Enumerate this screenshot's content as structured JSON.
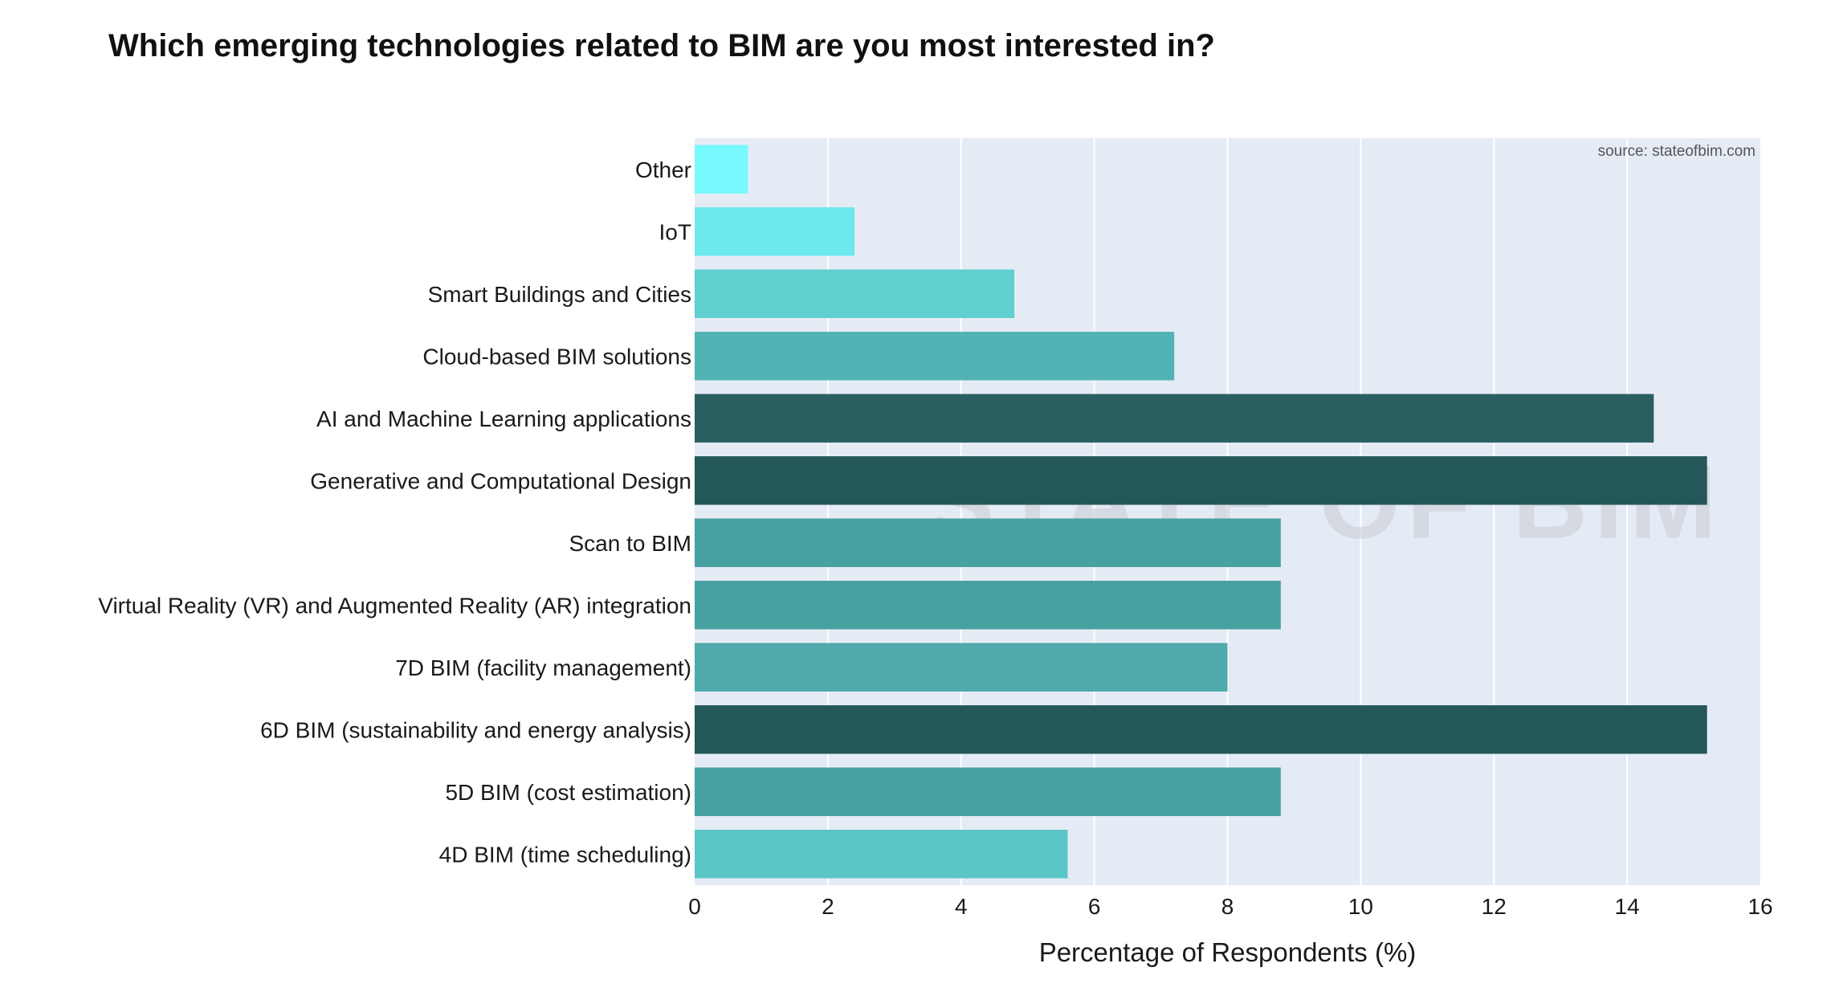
{
  "chart_data": {
    "type": "bar",
    "orientation": "horizontal",
    "title": "Which emerging technologies related to BIM are you most interested in?",
    "xlabel": "Percentage of Respondents (%)",
    "ylabel": "",
    "source": "source: stateofbim.com",
    "watermark": "STATE OF BIM",
    "xlim": [
      0,
      16
    ],
    "xticks": [
      0,
      2,
      4,
      6,
      8,
      10,
      12,
      14,
      16
    ],
    "grid": true,
    "background": "#e5ebf5",
    "categories": [
      "Other",
      "IoT",
      "Smart Buildings and Cities",
      "Cloud-based BIM solutions",
      "AI and Machine Learning applications",
      "Generative and Computational Design",
      "Scan to BIM",
      "Virtual Reality (VR) and Augmented Reality (AR) integration",
      "7D BIM (facility management)",
      "6D BIM (sustainability and energy analysis)",
      "5D BIM (cost estimation)",
      "4D BIM (time scheduling)"
    ],
    "values": [
      0.8,
      2.4,
      4.8,
      7.2,
      14.4,
      15.2,
      8.8,
      8.8,
      8.0,
      15.2,
      8.8,
      5.6
    ],
    "colors": [
      "#76fafd",
      "#6de9ec",
      "#5fcfd0",
      "#52b3b4",
      "#2a5f62",
      "#245758",
      "#48a0a1",
      "#48a0a1",
      "#4faaac",
      "#245758",
      "#48a0a1",
      "#5bc6c6"
    ]
  }
}
